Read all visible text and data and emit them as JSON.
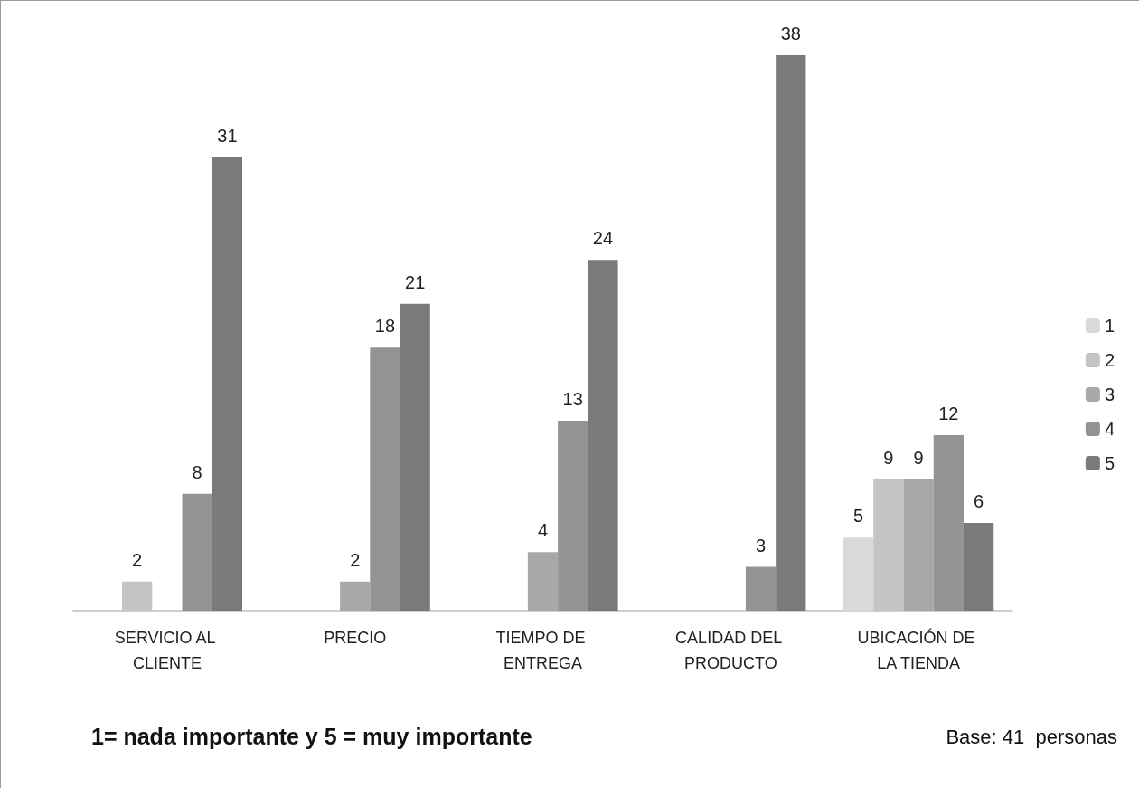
{
  "chart_data": {
    "type": "bar",
    "categories": [
      "SERVICIO AL CLIENTE",
      "PRECIO",
      "TIEMPO DE ENTREGA",
      "CALIDAD DEL PRODUCTO",
      "UBICACIÓN DE LA TIENDA"
    ],
    "series": [
      {
        "name": "1",
        "color": "#d9d9d9",
        "values": [
          null,
          null,
          null,
          null,
          5
        ]
      },
      {
        "name": "2",
        "color": "#c4c4c4",
        "values": [
          2,
          null,
          null,
          null,
          9
        ]
      },
      {
        "name": "3",
        "color": "#a8a8a8",
        "values": [
          null,
          2,
          4,
          null,
          9
        ]
      },
      {
        "name": "4",
        "color": "#939393",
        "values": [
          8,
          18,
          13,
          3,
          12
        ]
      },
      {
        "name": "5",
        "color": "#7a7a7a",
        "values": [
          31,
          21,
          24,
          38,
          6
        ]
      }
    ],
    "data_labels": true,
    "legend": "right",
    "annotations": [
      "1= nada importante y 5 = muy importante",
      "Base: 41  personas"
    ]
  }
}
